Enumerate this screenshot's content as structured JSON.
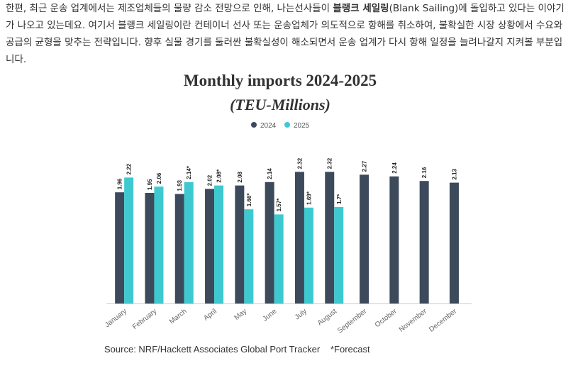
{
  "paragraph": {
    "before": "한편, 최근 운송 업계에서는 제조업체들의 물량 감소 전망으로 인해, 나는선사들이 ",
    "bold": "블랭크 세일링",
    "after": "(Blank Sailing)에 돌입하고 있다는 이야기가 나오고 있는데요. 여기서 블랭크 세일링이란 컨테이너 선사 또는 운송업체가 의도적으로 항해를 취소하여, 불확실한 시장 상황에서 수요와 공급의 균형을 맞추는 전략입니다. 향후 실물 경기를 둘러싼 불확실성이 해소되면서 운송 업계가 다시 항해 일정을 늘려나갈지 지켜볼 부분입니다."
  },
  "chart_data": {
    "type": "bar",
    "title": "Monthly imports 2024-2025",
    "subtitle": "(TEU-Millions)",
    "categories": [
      "January",
      "February",
      "March",
      "April",
      "May",
      "June",
      "July",
      "August",
      "September",
      "October",
      "November",
      "December"
    ],
    "series": [
      {
        "name": "2024",
        "color": "#3d4a5c",
        "values": [
          1.96,
          1.95,
          1.93,
          2.02,
          2.08,
          2.14,
          2.32,
          2.32,
          2.27,
          2.24,
          2.16,
          2.13
        ]
      },
      {
        "name": "2025",
        "color": "#3ec9d0",
        "values": [
          2.22,
          2.06,
          2.14,
          2.08,
          1.66,
          1.57,
          1.69,
          1.7,
          null,
          null,
          null,
          null
        ],
        "value_labels": [
          "2.22",
          "2.06",
          "2.14*",
          "2.08*",
          "1.66*",
          "1.57*",
          "1.69*",
          "1.7*",
          null,
          null,
          null,
          null
        ]
      }
    ],
    "source": "Source: NRF/Hackett Associates Global Port Tracker",
    "note": "*Forecast"
  }
}
